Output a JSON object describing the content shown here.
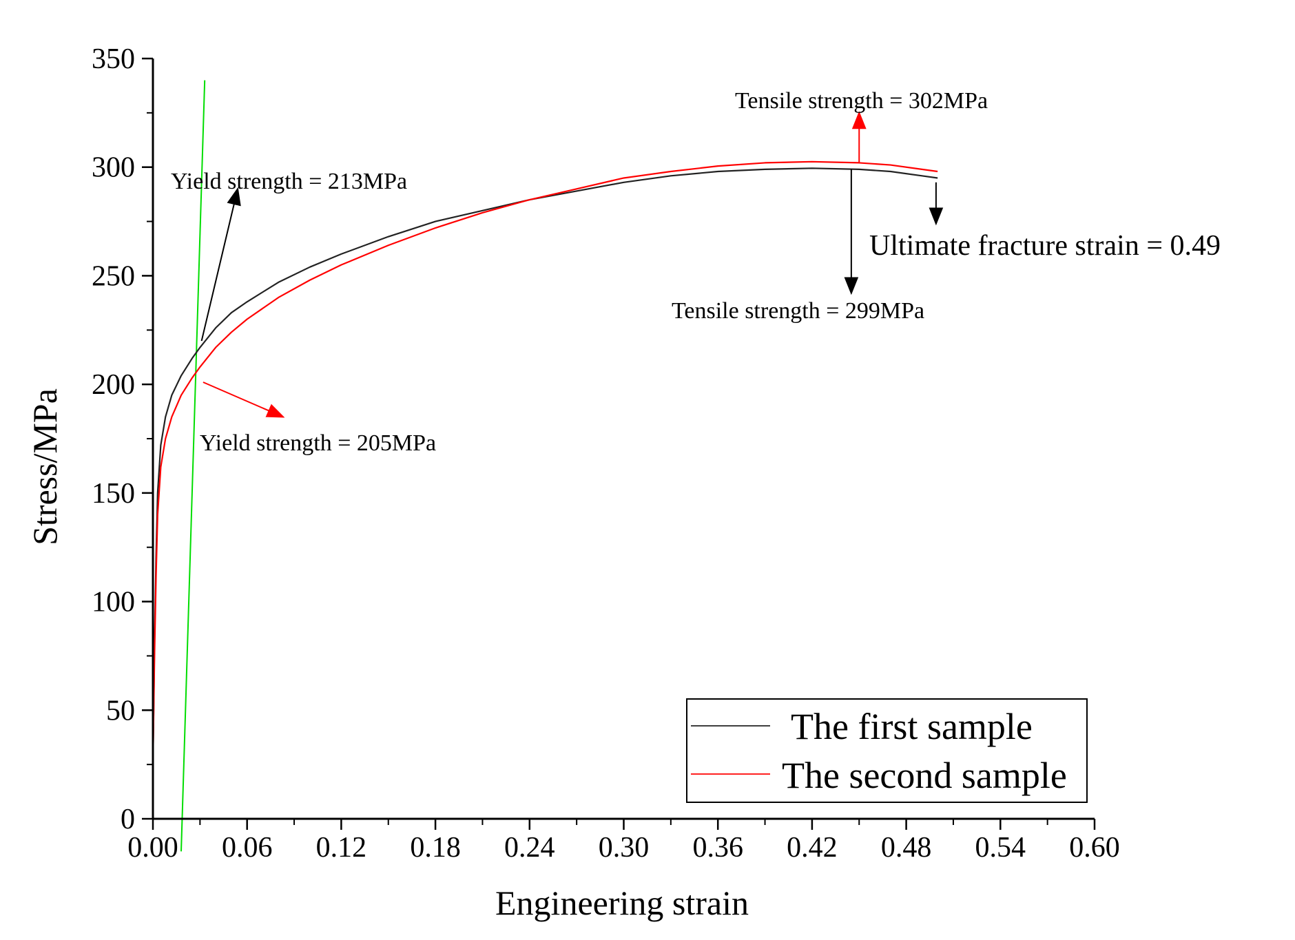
{
  "chart_data": {
    "type": "line",
    "xlabel": "Engineering strain",
    "ylabel": "Stress/MPa",
    "xlim": [
      0,
      0.6
    ],
    "ylim": [
      0,
      350
    ],
    "x_ticks": [
      "0.00",
      "0.06",
      "0.12",
      "0.18",
      "0.24",
      "0.30",
      "0.36",
      "0.42",
      "0.48",
      "0.54",
      "0.60"
    ],
    "y_ticks": [
      "0",
      "50",
      "100",
      "150",
      "200",
      "250",
      "300",
      "350"
    ],
    "legend_position": "bottom-right",
    "series": [
      {
        "name": "The first sample",
        "color": "#222222",
        "points": [
          [
            0.0,
            25
          ],
          [
            0.001,
            80
          ],
          [
            0.002,
            120
          ],
          [
            0.003,
            150
          ],
          [
            0.005,
            172
          ],
          [
            0.008,
            185
          ],
          [
            0.012,
            195
          ],
          [
            0.018,
            204
          ],
          [
            0.025,
            212
          ],
          [
            0.03,
            217
          ],
          [
            0.04,
            226
          ],
          [
            0.05,
            233
          ],
          [
            0.06,
            238
          ],
          [
            0.08,
            247
          ],
          [
            0.1,
            254
          ],
          [
            0.12,
            260
          ],
          [
            0.15,
            268
          ],
          [
            0.18,
            275
          ],
          [
            0.21,
            280
          ],
          [
            0.24,
            285
          ],
          [
            0.27,
            289
          ],
          [
            0.3,
            293
          ],
          [
            0.33,
            296
          ],
          [
            0.36,
            298
          ],
          [
            0.39,
            299
          ],
          [
            0.42,
            299.5
          ],
          [
            0.45,
            299
          ],
          [
            0.47,
            298
          ],
          [
            0.49,
            296
          ],
          [
            0.5,
            295
          ]
        ]
      },
      {
        "name": "The second sample",
        "color": "#ff0000",
        "points": [
          [
            0.0,
            25
          ],
          [
            0.001,
            75
          ],
          [
            0.002,
            112
          ],
          [
            0.003,
            140
          ],
          [
            0.005,
            162
          ],
          [
            0.008,
            175
          ],
          [
            0.012,
            185
          ],
          [
            0.018,
            195
          ],
          [
            0.025,
            203
          ],
          [
            0.03,
            208
          ],
          [
            0.04,
            217
          ],
          [
            0.05,
            224
          ],
          [
            0.06,
            230
          ],
          [
            0.08,
            240
          ],
          [
            0.1,
            248
          ],
          [
            0.12,
            255
          ],
          [
            0.15,
            264
          ],
          [
            0.18,
            272
          ],
          [
            0.21,
            279
          ],
          [
            0.24,
            285
          ],
          [
            0.27,
            290
          ],
          [
            0.3,
            295
          ],
          [
            0.33,
            298
          ],
          [
            0.36,
            300.5
          ],
          [
            0.39,
            302
          ],
          [
            0.42,
            302.5
          ],
          [
            0.45,
            302
          ],
          [
            0.47,
            301
          ],
          [
            0.49,
            299
          ],
          [
            0.5,
            298
          ]
        ]
      }
    ],
    "offset_line": {
      "color": "#00dd00",
      "points": [
        [
          0.018,
          -15
        ],
        [
          0.033,
          340
        ]
      ]
    },
    "annotations": [
      {
        "text": "Yield strength = 213MPa",
        "color": "#000000",
        "arrow_from": [
          0.031,
          220
        ],
        "arrow_to": [
          0.054,
          290
        ]
      },
      {
        "text": "Yield strength = 205MPa",
        "color": "#ff0000",
        "arrow_from": [
          0.032,
          201
        ],
        "arrow_to": [
          0.083,
          185
        ]
      },
      {
        "text": "Tensile strength = 302MPa",
        "color": "#ff0000",
        "arrow_from": [
          0.45,
          302
        ],
        "arrow_to": [
          0.45,
          325
        ]
      },
      {
        "text": "Tensile strength = 299MPa",
        "color": "#000000",
        "arrow_from": [
          0.445,
          299
        ],
        "arrow_to": [
          0.445,
          242
        ]
      },
      {
        "text": "Ultimate fracture strain = 0.49",
        "color": "#000000",
        "arrow_from": [
          0.499,
          293
        ],
        "arrow_to": [
          0.499,
          274
        ]
      }
    ]
  }
}
